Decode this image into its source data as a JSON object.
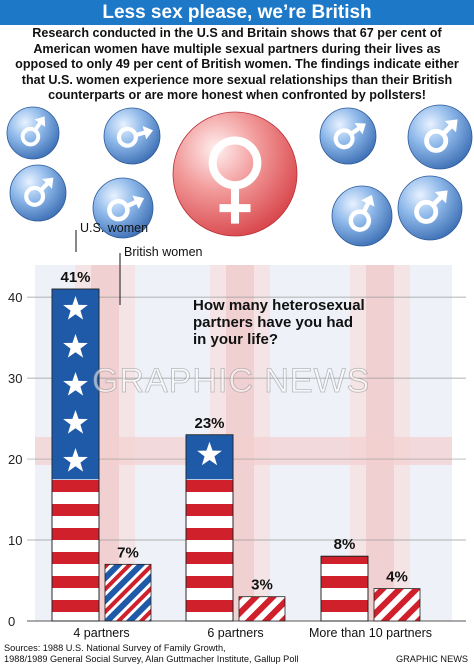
{
  "title": "Less sex please, we’re British",
  "intro": "Research conducted in the U.S and Britain shows that 67 per cent of American women have multiple sexual partners during their lives as opposed to only 49 per cent of British women. The findings indicate either that U.S. women experience more sexual relationships than their British counterparts or are more honest when confronted by pollsters!",
  "question": [
    "How many heterosexual",
    "partners have you had",
    "in your life?"
  ],
  "watermark": "GRAPHIC NEWS",
  "sources": [
    "Sources: 1988 U.S. National Survey of Family Growth,",
    "1988/1989 General Social Survey, Alan Guttmacher Institute, Gallup Poll"
  ],
  "credit": "GRAPHIC NEWS",
  "colors": {
    "us_red": "#d0202c",
    "us_blue": "#1f5aa8",
    "title_blue": "#1e78c8",
    "grid": "#9a9a9a"
  },
  "decor_icons": [
    "male-symbol-bubble",
    "female-symbol-bubble"
  ],
  "chart_data": {
    "type": "bar",
    "categories": [
      "4 partners",
      "6 partners",
      "More than 10 partners"
    ],
    "series": [
      {
        "name": "U.S. women",
        "values": [
          41,
          23,
          8
        ],
        "labels": [
          "41%",
          "23%",
          "8%"
        ]
      },
      {
        "name": "British women",
        "values": [
          7,
          3,
          4
        ],
        "labels": [
          "7%",
          "3%",
          "4%"
        ]
      }
    ],
    "ylim": [
      0,
      40
    ],
    "yticks": [
      0,
      10,
      20,
      30,
      40
    ],
    "grid": true,
    "legend": "top-left"
  }
}
